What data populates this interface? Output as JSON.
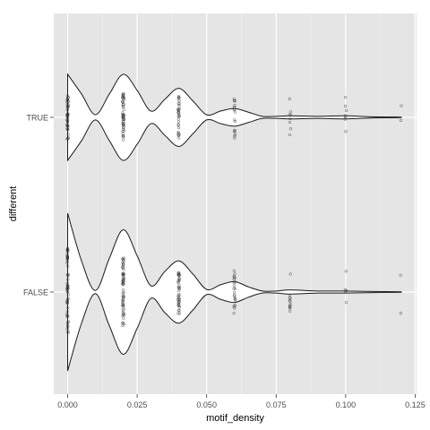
{
  "chart_data": {
    "type": "violin",
    "xlabel": "motif_density",
    "ylabel": "different",
    "categories": [
      "FALSE",
      "TRUE"
    ],
    "x_ticks": [
      {
        "value": 0.0,
        "label": "0.000"
      },
      {
        "value": 0.025,
        "label": "0.025"
      },
      {
        "value": 0.05,
        "label": "0.050"
      },
      {
        "value": 0.075,
        "label": "0.075"
      },
      {
        "value": 0.1,
        "label": "0.100"
      },
      {
        "value": 0.125,
        "label": "0.125"
      }
    ],
    "xlim": [
      -0.005,
      0.1255
    ],
    "grid": true,
    "panel_background": "#e5e5e5",
    "grid_color": "#ffffff",
    "series": [
      {
        "category": "TRUE",
        "density_profile": [
          [
            0.0,
            0.83
          ],
          [
            0.005,
            0.45
          ],
          [
            0.01,
            0.05
          ],
          [
            0.015,
            0.45
          ],
          [
            0.02,
            0.83
          ],
          [
            0.025,
            0.52
          ],
          [
            0.03,
            0.12
          ],
          [
            0.035,
            0.35
          ],
          [
            0.04,
            0.56
          ],
          [
            0.045,
            0.32
          ],
          [
            0.05,
            0.05
          ],
          [
            0.055,
            0.12
          ],
          [
            0.06,
            0.17
          ],
          [
            0.065,
            0.1
          ],
          [
            0.07,
            0.02
          ],
          [
            0.075,
            0.02
          ],
          [
            0.08,
            0.03
          ],
          [
            0.09,
            0.02
          ],
          [
            0.1,
            0.03
          ],
          [
            0.11,
            0.01
          ],
          [
            0.12,
            0.005
          ]
        ],
        "points": [
          {
            "x": 0.0,
            "count": 45
          },
          {
            "x": 0.02,
            "count": 50
          },
          {
            "x": 0.04,
            "count": 30
          },
          {
            "x": 0.06,
            "count": 18
          },
          {
            "x": 0.08,
            "count": 8
          },
          {
            "x": 0.1,
            "count": 7
          },
          {
            "x": 0.12,
            "count": 2
          }
        ]
      },
      {
        "category": "FALSE",
        "density_profile": [
          [
            0.0,
            1.52
          ],
          [
            0.005,
            0.6
          ],
          [
            0.01,
            0.03
          ],
          [
            0.015,
            0.65
          ],
          [
            0.02,
            1.2
          ],
          [
            0.025,
            0.7
          ],
          [
            0.03,
            0.12
          ],
          [
            0.035,
            0.4
          ],
          [
            0.04,
            0.6
          ],
          [
            0.045,
            0.35
          ],
          [
            0.05,
            0.05
          ],
          [
            0.055,
            0.14
          ],
          [
            0.06,
            0.2
          ],
          [
            0.065,
            0.1
          ],
          [
            0.07,
            0.02
          ],
          [
            0.075,
            0.02
          ],
          [
            0.08,
            0.04
          ],
          [
            0.09,
            0.02
          ],
          [
            0.1,
            0.02
          ],
          [
            0.11,
            0.01
          ],
          [
            0.12,
            0.005
          ]
        ],
        "points": [
          {
            "x": 0.0,
            "count": 55
          },
          {
            "x": 0.02,
            "count": 60
          },
          {
            "x": 0.04,
            "count": 40
          },
          {
            "x": 0.06,
            "count": 22
          },
          {
            "x": 0.08,
            "count": 12
          },
          {
            "x": 0.1,
            "count": 5
          },
          {
            "x": 0.12,
            "count": 2
          }
        ]
      }
    ]
  }
}
